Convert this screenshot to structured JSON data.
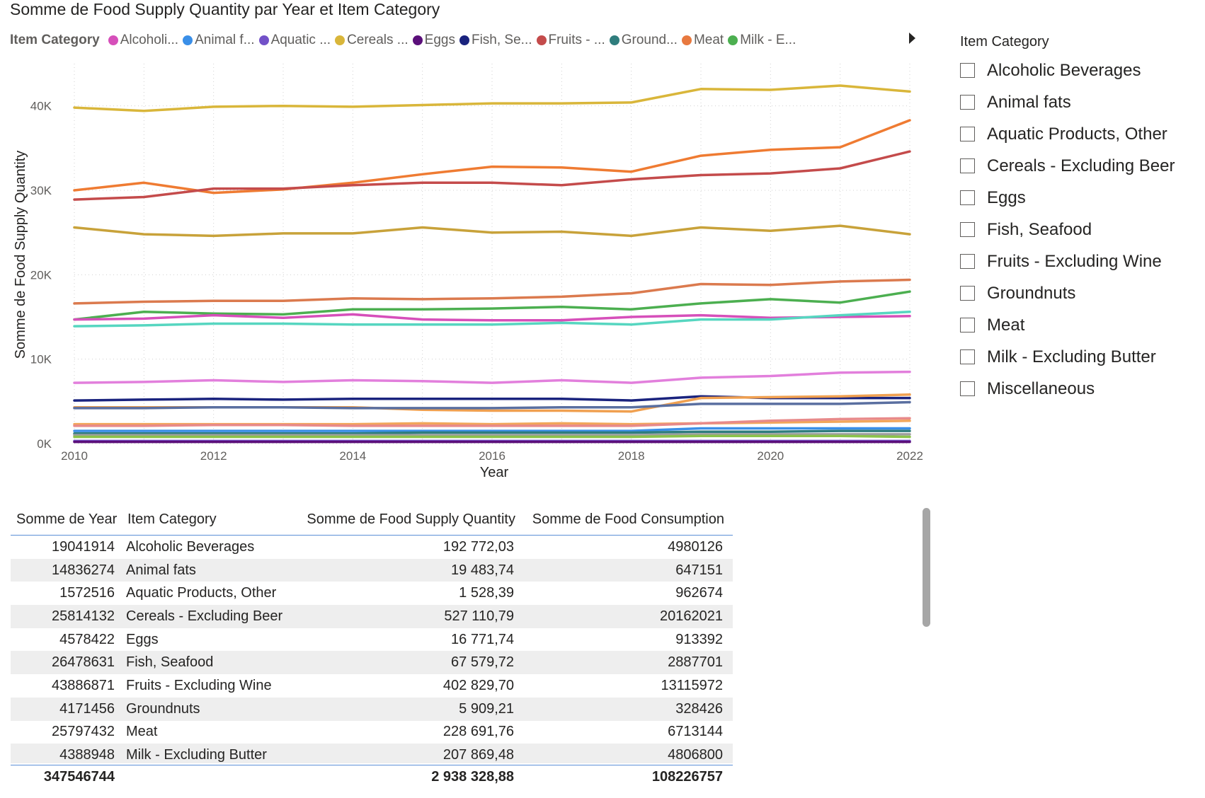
{
  "chart_data": {
    "type": "line",
    "title": "Somme de Food Supply Quantity par Year et Item Category",
    "legend_title": "Item Category",
    "legend_position": "top",
    "xlabel": "Year",
    "ylabel": "Somme de Food Supply Quantity",
    "xlim": [
      2010,
      2022
    ],
    "ylim": [
      0,
      45000
    ],
    "x_ticks": [
      "2010",
      "2012",
      "2014",
      "2016",
      "2018",
      "2020",
      "2022"
    ],
    "y_ticks": [
      "0K",
      "10K",
      "20K",
      "30K",
      "40K"
    ],
    "grid": true,
    "x": [
      2010,
      2011,
      2012,
      2013,
      2014,
      2015,
      2016,
      2017,
      2018,
      2019,
      2020,
      2021,
      2022
    ],
    "legend": [
      {
        "label": "Alcoholi...",
        "color": "#d64fba"
      },
      {
        "label": "Animal f...",
        "color": "#3a8fe8"
      },
      {
        "label": "Aquatic ...",
        "color": "#7251c8"
      },
      {
        "label": "Cereals ...",
        "color": "#d9b63a"
      },
      {
        "label": "Eggs",
        "color": "#5b0f7a"
      },
      {
        "label": "Fish, Se...",
        "color": "#1a237e"
      },
      {
        "label": "Fruits - ...",
        "color": "#c44b4b"
      },
      {
        "label": "Ground...",
        "color": "#2f7d7d"
      },
      {
        "label": "Meat",
        "color": "#e8793f"
      },
      {
        "label": "Milk - E...",
        "color": "#4caf50"
      }
    ],
    "series": [
      {
        "color": "#d9b63a",
        "values": [
          39800,
          39400,
          39900,
          40000,
          39900,
          40100,
          40300,
          40300,
          40400,
          42000,
          41900,
          42400,
          41700
        ]
      },
      {
        "color": "#ef7b32",
        "values": [
          30000,
          30900,
          29700,
          30100,
          30900,
          31900,
          32800,
          32700,
          32200,
          34100,
          34800,
          35100,
          38300
        ]
      },
      {
        "color": "#c44b4b",
        "values": [
          28900,
          29200,
          30200,
          30200,
          30600,
          30900,
          30900,
          30600,
          31300,
          31800,
          32000,
          32600,
          34600
        ]
      },
      {
        "color": "#c8a23a",
        "values": [
          25600,
          24800,
          24600,
          24900,
          24900,
          25600,
          25000,
          25100,
          24600,
          25600,
          25200,
          25800,
          24800
        ]
      },
      {
        "color": "#db7a4e",
        "values": [
          16600,
          16800,
          16900,
          16900,
          17200,
          17100,
          17200,
          17400,
          17800,
          18900,
          18800,
          19200,
          19400
        ]
      },
      {
        "color": "#4caf50",
        "values": [
          14700,
          15600,
          15400,
          15300,
          15900,
          15900,
          16000,
          16200,
          15900,
          16600,
          17100,
          16700,
          18000
        ]
      },
      {
        "color": "#d64fba",
        "values": [
          14700,
          14800,
          15200,
          14900,
          15300,
          14700,
          14600,
          14600,
          15000,
          15200,
          14900,
          15000,
          15100
        ]
      },
      {
        "color": "#56d6c0",
        "values": [
          13900,
          14000,
          14200,
          14200,
          14100,
          14100,
          14100,
          14300,
          14100,
          14700,
          14700,
          15200,
          15600
        ]
      },
      {
        "color": "#e27fdc",
        "values": [
          7200,
          7300,
          7500,
          7300,
          7500,
          7400,
          7200,
          7500,
          7200,
          7800,
          8000,
          8400,
          8500
        ]
      },
      {
        "color": "#f2a65a",
        "values": [
          2300,
          2300,
          2300,
          2300,
          2300,
          2400,
          2300,
          2400,
          2300,
          2400,
          2500,
          2600,
          2700
        ]
      },
      {
        "color": "#1a237e",
        "values": [
          5100,
          5200,
          5300,
          5200,
          5300,
          5300,
          5300,
          5300,
          5100,
          5600,
          5400,
          5400,
          5400
        ]
      },
      {
        "color": "#f0a050",
        "values": [
          4300,
          4300,
          4300,
          4300,
          4300,
          4000,
          3900,
          3900,
          3800,
          5400,
          5500,
          5600,
          5800
        ]
      },
      {
        "color": "#5a6fa0",
        "values": [
          4200,
          4200,
          4300,
          4300,
          4200,
          4200,
          4200,
          4300,
          4300,
          4700,
          4700,
          4700,
          4900
        ]
      },
      {
        "color": "#e88a8a",
        "values": [
          2100,
          2100,
          2200,
          2200,
          2100,
          2100,
          2100,
          2100,
          2100,
          2400,
          2700,
          2900,
          3000
        ]
      },
      {
        "color": "#3a8fe8",
        "values": [
          1500,
          1500,
          1500,
          1500,
          1500,
          1500,
          1500,
          1500,
          1500,
          1800,
          1800,
          1800,
          1800
        ]
      },
      {
        "color": "#2f7d7d",
        "values": [
          1200,
          1200,
          1200,
          1200,
          1200,
          1300,
          1300,
          1300,
          1300,
          1400,
          1400,
          1500,
          1500
        ]
      },
      {
        "color": "#9e9e9e",
        "values": [
          1000,
          1000,
          1000,
          1000,
          1000,
          1000,
          1000,
          1000,
          1000,
          1100,
          1100,
          1100,
          1100
        ]
      },
      {
        "color": "#8bc34a",
        "values": [
          800,
          800,
          800,
          800,
          800,
          800,
          800,
          800,
          800,
          900,
          900,
          900,
          800
        ]
      },
      {
        "color": "#7251c8",
        "values": [
          300,
          300,
          300,
          300,
          300,
          300,
          300,
          300,
          300,
          300,
          300,
          300,
          300
        ]
      },
      {
        "color": "#5b0f7a",
        "values": [
          200,
          200,
          200,
          200,
          200,
          200,
          200,
          200,
          200,
          200,
          200,
          200,
          200
        ]
      }
    ]
  },
  "slicer": {
    "title": "Item Category",
    "items": [
      "Alcoholic Beverages",
      "Animal fats",
      "Aquatic Products, Other",
      "Cereals - Excluding Beer",
      "Eggs",
      "Fish, Seafood",
      "Fruits - Excluding Wine",
      "Groundnuts",
      "Meat",
      "Milk - Excluding Butter",
      "Miscellaneous"
    ]
  },
  "table": {
    "headers": [
      "Somme de Year",
      "Item Category",
      "Somme de Food Supply Quantity",
      "Somme de Food Consumption"
    ],
    "rows": [
      [
        "19041914",
        "Alcoholic Beverages",
        "192 772,03",
        "4980126"
      ],
      [
        "14836274",
        "Animal fats",
        "19 483,74",
        "647151"
      ],
      [
        "1572516",
        "Aquatic Products, Other",
        "1 528,39",
        "962674"
      ],
      [
        "25814132",
        "Cereals - Excluding Beer",
        "527 110,79",
        "20162021"
      ],
      [
        "4578422",
        "Eggs",
        "16 771,74",
        "913392"
      ],
      [
        "26478631",
        "Fish, Seafood",
        "67 579,72",
        "2887701"
      ],
      [
        "43886871",
        "Fruits - Excluding Wine",
        "402 829,70",
        "13115972"
      ],
      [
        "4171456",
        "Groundnuts",
        "5 909,21",
        "328426"
      ],
      [
        "25797432",
        "Meat",
        "228 691,76",
        "6713144"
      ],
      [
        "4388948",
        "Milk - Excluding Butter",
        "207 869,48",
        "4806800"
      ]
    ],
    "totals": [
      "347546744",
      "",
      "2 938 328,88",
      "108226757"
    ]
  }
}
